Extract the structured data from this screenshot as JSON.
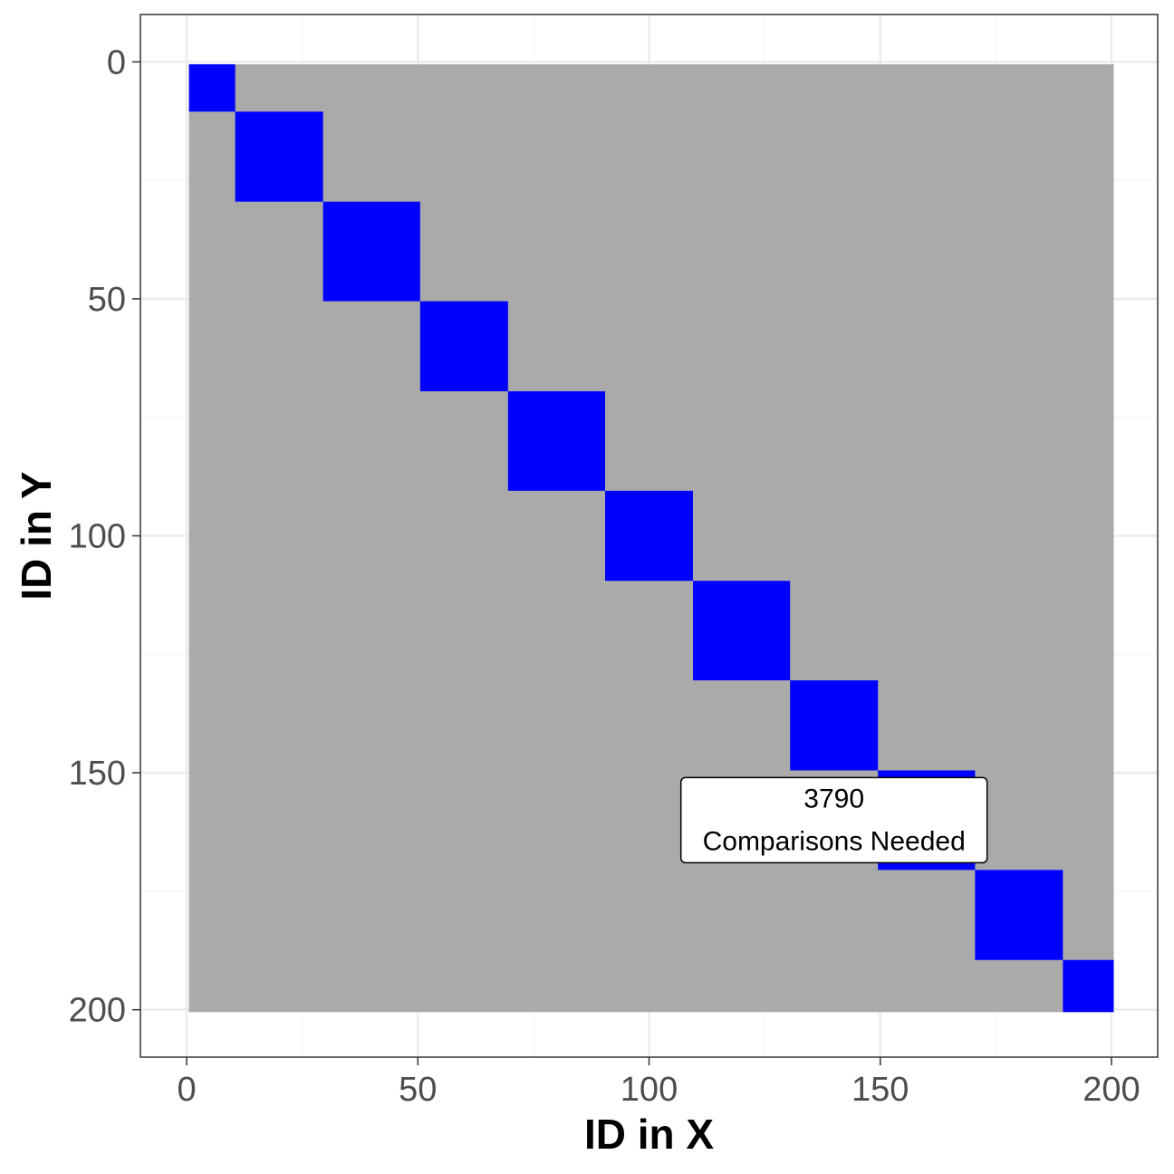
{
  "chart_data": {
    "type": "heatmap",
    "title": "",
    "xlabel": "ID in X",
    "ylabel": "ID in Y",
    "xlim": [
      -10,
      210
    ],
    "ylim": [
      210,
      -10
    ],
    "y_reversed": true,
    "x_ticks": [
      0,
      50,
      100,
      150,
      200
    ],
    "x_tick_labels": [
      "0",
      "50",
      "100",
      "150",
      "200"
    ],
    "y_ticks": [
      0,
      50,
      100,
      150,
      200
    ],
    "y_tick_labels": [
      "0",
      "50",
      "100",
      "150",
      "200"
    ],
    "grid": true,
    "legend": "none",
    "colors": {
      "background_cell": "#aaaaaa",
      "block": "#0000ff",
      "panel_border": "#333333",
      "grid_major": "#ebebeb",
      "grid_minor": "#f5f5f5"
    },
    "background_range": {
      "x": [
        0.5,
        200.5
      ],
      "y": [
        0.5,
        200.5
      ]
    },
    "blocks": [
      {
        "x0": 0.5,
        "x1": 10.5,
        "y0": 0.5,
        "y1": 10.5
      },
      {
        "x0": 10.5,
        "x1": 29.5,
        "y0": 10.5,
        "y1": 29.5
      },
      {
        "x0": 29.5,
        "x1": 50.5,
        "y0": 29.5,
        "y1": 50.5
      },
      {
        "x0": 50.5,
        "x1": 69.5,
        "y0": 50.5,
        "y1": 69.5
      },
      {
        "x0": 69.5,
        "x1": 90.5,
        "y0": 69.5,
        "y1": 90.5
      },
      {
        "x0": 90.5,
        "x1": 109.5,
        "y0": 90.5,
        "y1": 109.5
      },
      {
        "x0": 109.5,
        "x1": 130.5,
        "y0": 109.5,
        "y1": 130.5
      },
      {
        "x0": 130.5,
        "x1": 149.5,
        "y0": 130.5,
        "y1": 149.5
      },
      {
        "x0": 149.5,
        "x1": 170.5,
        "y0": 149.5,
        "y1": 170.5
      },
      {
        "x0": 170.5,
        "x1": 189.5,
        "y0": 170.5,
        "y1": 189.5
      },
      {
        "x0": 189.5,
        "x1": 200.5,
        "y0": 189.5,
        "y1": 200.5
      }
    ],
    "annotation": {
      "lines": [
        "3790",
        "Comparisons Needed"
      ],
      "x": 140,
      "y": 160
    }
  }
}
